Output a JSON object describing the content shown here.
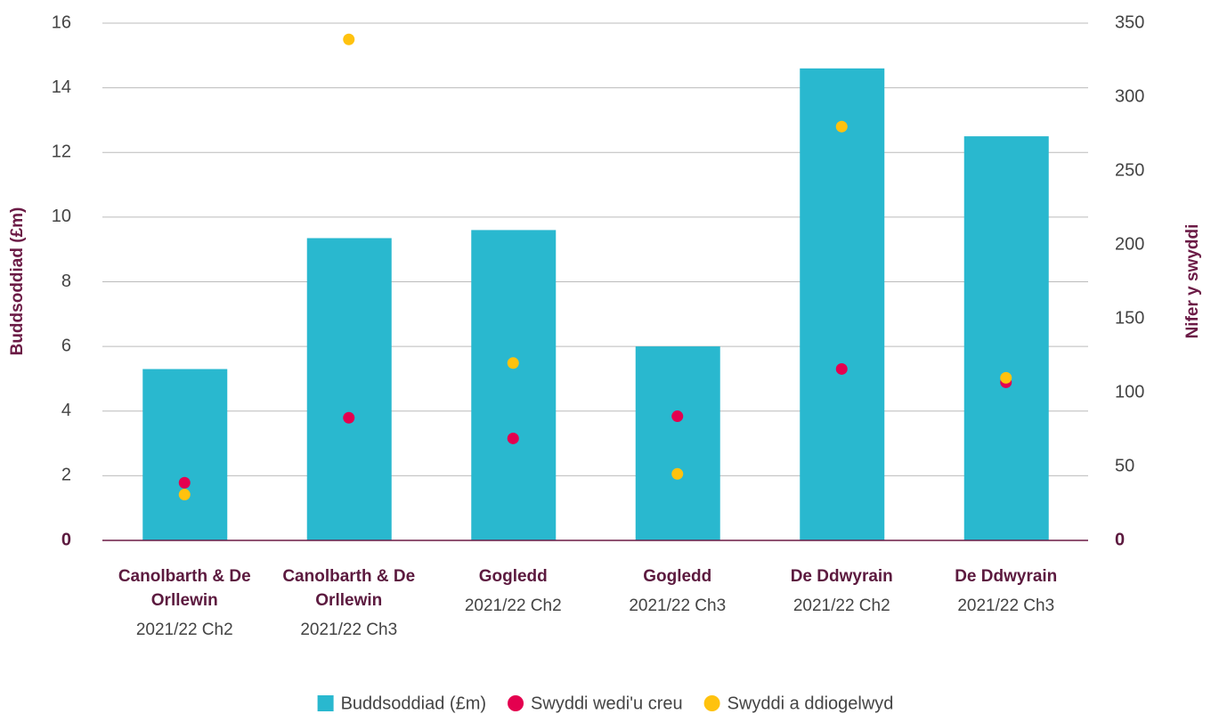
{
  "chart_data": {
    "type": "bar",
    "y_label": "Buddsoddiad (£m)",
    "y2_label": "Nifer y swyddi",
    "categories": [
      "Canolbarth & De Orllewin",
      "Canolbarth & De Orllewin",
      "Gogledd",
      "Gogledd",
      "De Ddwyrain",
      "De Ddwyrain"
    ],
    "category_periods": [
      "2021/22 Ch2",
      "2021/22 Ch3",
      "2021/22 Ch2",
      "2021/22 Ch3",
      "2021/22 Ch2",
      "2021/22 Ch3"
    ],
    "series": [
      {
        "name": "Buddsoddiad (£m)",
        "type": "bar",
        "color": "#29b8cf",
        "values": [
          5.3,
          9.35,
          9.6,
          6.0,
          14.6,
          12.5
        ]
      },
      {
        "name": "Swyddi wedi'u creu",
        "type": "scatter",
        "axis": "y2",
        "color": "#e4004f",
        "values": [
          39,
          83,
          69,
          84,
          116,
          107
        ]
      },
      {
        "name": "Swyddi a ddiogelwyd",
        "type": "scatter",
        "axis": "y2",
        "color": "#ffc20e",
        "values": [
          31,
          339,
          120,
          45,
          280,
          110
        ]
      }
    ],
    "ylim": [
      0,
      16
    ],
    "yticks": [
      0,
      2,
      4,
      6,
      8,
      10,
      12,
      14,
      16
    ],
    "y2lim": [
      0,
      350
    ],
    "y2ticks": [
      0,
      50,
      100,
      150,
      200,
      250,
      300,
      350
    ],
    "grid": true,
    "legend": "bottom"
  }
}
